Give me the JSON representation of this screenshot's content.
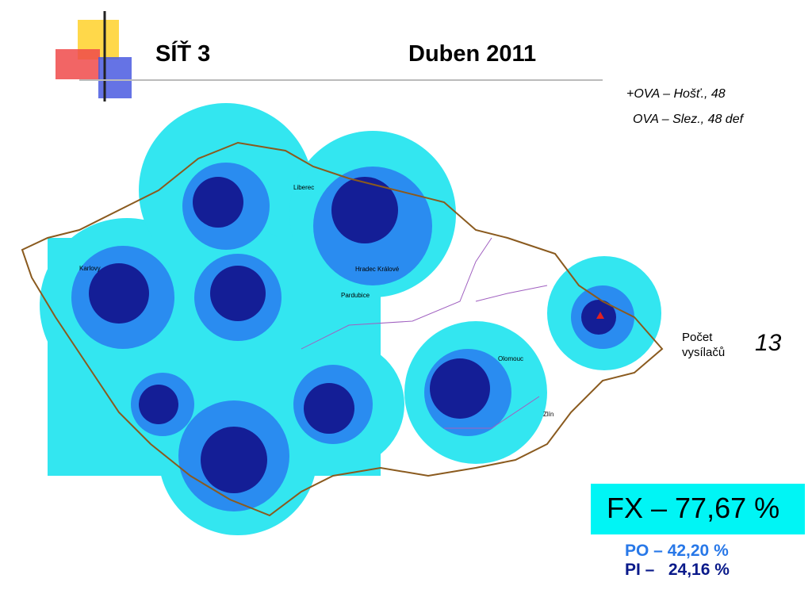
{
  "header": {
    "title": "SÍŤ 3",
    "date": "Duben 2011"
  },
  "notes": [
    "+OVA – Hošť., 48",
    "OVA – Slez., 48 def"
  ],
  "map": {
    "places": [
      "Liberec",
      "Hradec Králové",
      "Pardubice",
      "Olomouc",
      "Zlín",
      "Karlovy"
    ]
  },
  "count": {
    "label_lines": [
      "Počet",
      "vysílačů"
    ],
    "value": "13"
  },
  "coverage": {
    "fx": "FX – 77,67 %",
    "po": "PO – 42,20 %",
    "pi": "PI –   24,16 %"
  }
}
